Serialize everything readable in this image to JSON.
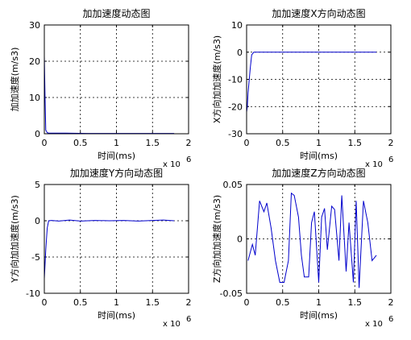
{
  "chart_data": [
    {
      "type": "line",
      "title": "加加速度动态图",
      "xlabel": "时间(ms)",
      "ylabel": "加加速度(m/s3)",
      "xlim": [
        0,
        2
      ],
      "ylim": [
        0,
        30
      ],
      "x_ticks": [
        "0",
        "0.5",
        "1",
        "1.5",
        "2"
      ],
      "y_ticks": [
        "0",
        "10",
        "20",
        "30"
      ],
      "x_multiplier": "x 10",
      "x_multiplier_exp": "6",
      "grid": true,
      "line_color": "#0000cc",
      "x": [
        0.0,
        0.01,
        0.02,
        0.04,
        0.06,
        0.1,
        0.3,
        0.6,
        1.0,
        1.4,
        1.8
      ],
      "y": [
        21.5,
        10,
        1.0,
        0.3,
        0.2,
        0.15,
        0.15,
        0.1,
        0.1,
        0.1,
        0.1
      ]
    },
    {
      "type": "line",
      "title": "加加速度X方向动态图",
      "xlabel": "时间(ms)",
      "ylabel": "X方向加加速度(m/s3)",
      "xlim": [
        0,
        2
      ],
      "ylim": [
        -30,
        10
      ],
      "x_ticks": [
        "0",
        "0.5",
        "1",
        "1.5",
        "2"
      ],
      "y_ticks": [
        "-30",
        "-20",
        "-10",
        "0",
        "10"
      ],
      "x_multiplier": "x 10",
      "x_multiplier_exp": "6",
      "grid": true,
      "line_color": "#0000cc",
      "x": [
        0.0,
        0.01,
        0.02,
        0.03,
        0.05,
        0.07,
        0.1,
        0.5,
        1.0,
        1.5,
        1.8
      ],
      "y": [
        -22,
        -20,
        -15,
        -12,
        -6,
        -1,
        0,
        0,
        0,
        0,
        0
      ]
    },
    {
      "type": "line",
      "title": "加加速度Y方向动态图",
      "xlabel": "时间(ms)",
      "ylabel": "Y方向加加速度(m/s3)",
      "xlim": [
        0,
        2
      ],
      "ylim": [
        -10,
        5
      ],
      "x_ticks": [
        "0",
        "0.5",
        "1",
        "1.5",
        "2"
      ],
      "y_ticks": [
        "-10",
        "-5",
        "0",
        "5"
      ],
      "x_multiplier": "x 10",
      "x_multiplier_exp": "6",
      "grid": true,
      "line_color": "#0000cc",
      "x": [
        0.0,
        0.02,
        0.04,
        0.06,
        0.1,
        0.2,
        0.35,
        0.5,
        0.7,
        0.9,
        1.1,
        1.3,
        1.5,
        1.65,
        1.8
      ],
      "y": [
        -8,
        -4,
        -1,
        0,
        0.05,
        -0.05,
        0.1,
        -0.05,
        0.05,
        0.0,
        0.05,
        -0.05,
        0.05,
        0.1,
        0.0
      ]
    },
    {
      "type": "line",
      "title": "加加速度Z方向动态图",
      "xlabel": "时间(ms)",
      "ylabel": "Z方向加加速度(m/s3)",
      "xlim": [
        0,
        2
      ],
      "ylim": [
        -0.05,
        0.05
      ],
      "x_ticks": [
        "0",
        "0.5",
        "1",
        "1.5",
        "2"
      ],
      "y_ticks": [
        "-0.05",
        "0",
        "0.05"
      ],
      "x_multiplier": "x 10",
      "x_multiplier_exp": "6",
      "grid": true,
      "line_color": "#0000cc",
      "x": [
        0.02,
        0.08,
        0.12,
        0.18,
        0.24,
        0.28,
        0.34,
        0.4,
        0.46,
        0.52,
        0.58,
        0.62,
        0.66,
        0.72,
        0.76,
        0.8,
        0.86,
        0.9,
        0.94,
        1.0,
        1.04,
        1.08,
        1.12,
        1.18,
        1.22,
        1.28,
        1.32,
        1.38,
        1.42,
        1.48,
        1.52,
        1.56,
        1.62,
        1.68,
        1.74,
        1.8
      ],
      "y": [
        -0.02,
        -0.005,
        -0.015,
        0.035,
        0.025,
        0.033,
        0.01,
        -0.02,
        -0.04,
        -0.04,
        -0.02,
        0.042,
        0.04,
        0.02,
        -0.015,
        -0.035,
        -0.035,
        0.015,
        0.025,
        -0.04,
        0.02,
        0.028,
        -0.01,
        0.03,
        0.027,
        -0.02,
        0.04,
        -0.03,
        0.015,
        -0.04,
        0.035,
        -0.045,
        0.035,
        0.015,
        -0.02,
        -0.015
      ]
    }
  ]
}
